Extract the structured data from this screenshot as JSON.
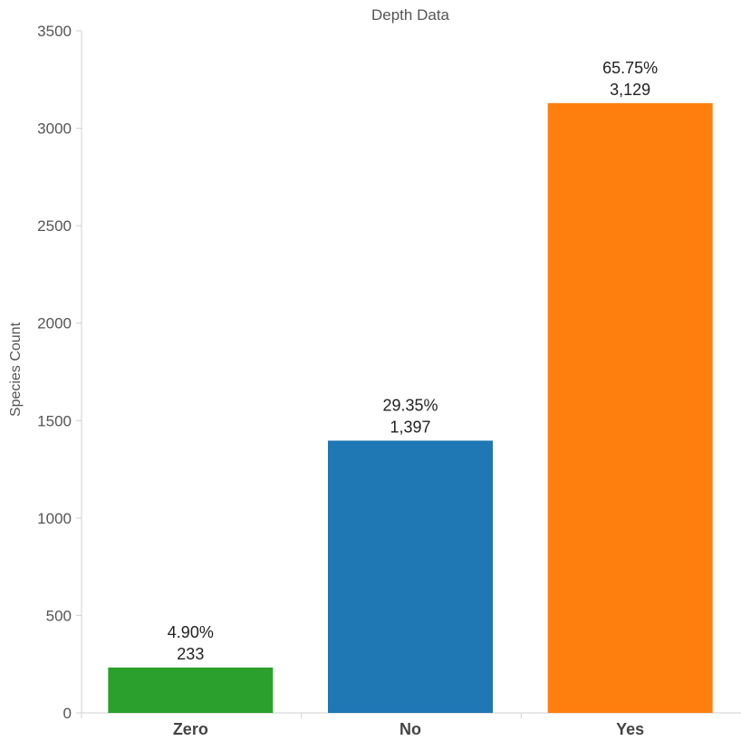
{
  "chart_data": {
    "type": "bar",
    "title": "Depth Data",
    "xlabel": "",
    "ylabel": "Species Count",
    "ylim": [
      0,
      3500
    ],
    "yticks": [
      0,
      500,
      1000,
      1500,
      2000,
      2500,
      3000,
      3500
    ],
    "categories": [
      "Zero",
      "No",
      "Yes"
    ],
    "values": [
      233,
      1397,
      3129
    ],
    "percent_labels": [
      "4.90%",
      "29.35%",
      "65.75%"
    ],
    "value_labels": [
      "233",
      "1,397",
      "3,129"
    ],
    "colors": [
      "#2ca02c",
      "#1f77b4",
      "#ff7f0e"
    ],
    "grid": false,
    "legend": "none"
  }
}
